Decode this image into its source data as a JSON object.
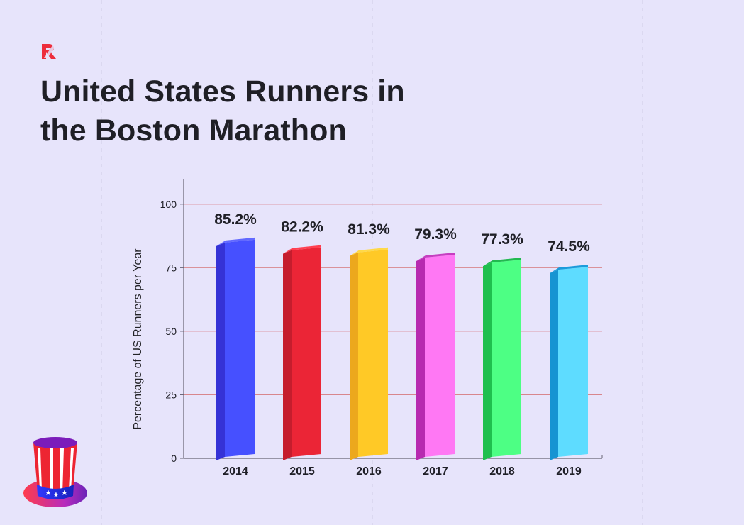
{
  "header": {
    "brand_mark": "R",
    "title_line_1": "United States Runners in",
    "title_line_2": "the Boston Marathon"
  },
  "chart_data": {
    "type": "bar",
    "categories": [
      "2014",
      "2015",
      "2016",
      "2017",
      "2018",
      "2019"
    ],
    "values": [
      85.2,
      82.2,
      81.3,
      79.3,
      77.3,
      74.5
    ],
    "data_labels": [
      "85.2%",
      "82.2%",
      "81.3%",
      "79.3%",
      "77.3%",
      "74.5%"
    ],
    "title": "United States Runners in the Boston Marathon",
    "xlabel": "",
    "ylabel": "Percentage of US Runners per Year",
    "ylim": [
      0,
      110
    ],
    "yticks": [
      0,
      25,
      50,
      75,
      100
    ],
    "ytick_labels": [
      "0",
      "25",
      "50",
      "75",
      "100"
    ],
    "grid": true,
    "legend": "none",
    "colors": [
      {
        "front": "#4650ff",
        "side": "#3532d6",
        "top": "#6168ff"
      },
      {
        "front": "#eb2536",
        "side": "#c51d2d",
        "top": "#ff4051"
      },
      {
        "front": "#ffc926",
        "side": "#eca81d",
        "top": "#ffd948"
      },
      {
        "front": "#ff78f4",
        "side": "#b72ab0",
        "top": "#c53fc0"
      },
      {
        "front": "#4dff84",
        "side": "#1fbf4e",
        "top": "#22b950"
      },
      {
        "front": "#5edcff",
        "side": "#1694d2",
        "top": "#1b9bdb"
      }
    ]
  },
  "theme": {
    "background": "#e7e4fb",
    "grid_color": "#d8868d",
    "axis_color": "#676373",
    "text_color": "#1f1f26",
    "accent_red": "#ed2d3c"
  },
  "decorations": {
    "corner_icon": "uncle-sam-hat-icon"
  }
}
